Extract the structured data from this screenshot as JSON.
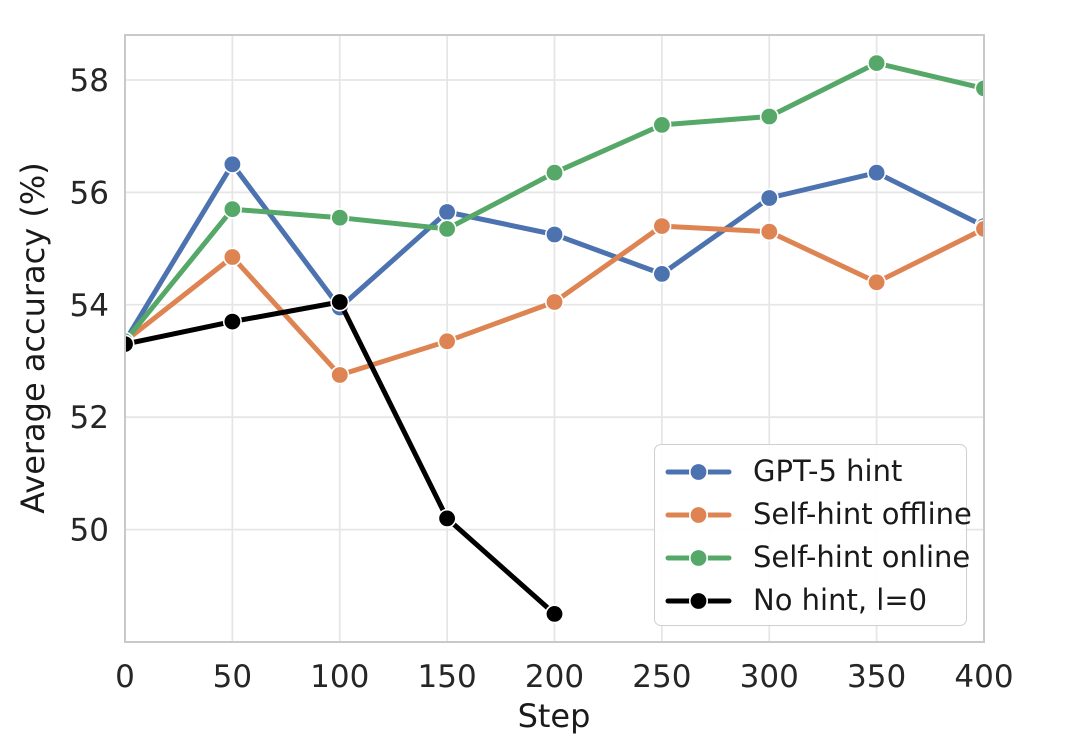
{
  "chart_data": {
    "type": "line",
    "title": "",
    "xlabel": "Step",
    "ylabel": "Average accuracy (%)",
    "x": [
      0,
      50,
      100,
      150,
      200,
      250,
      300,
      350,
      400
    ],
    "xlim": [
      0,
      400
    ],
    "ylim": [
      48.0,
      58.8
    ],
    "xticks": [
      0,
      50,
      100,
      150,
      200,
      250,
      300,
      350,
      400
    ],
    "yticks": [
      50,
      52,
      54,
      56,
      58
    ],
    "grid": true,
    "legend_position": "lower-right-inside",
    "series": [
      {
        "name": "GPT-5 hint",
        "color": "#4C72B0",
        "x": [
          0,
          50,
          100,
          150,
          200,
          250,
          300,
          350,
          400
        ],
        "values": [
          53.35,
          56.5,
          53.95,
          55.65,
          55.25,
          54.55,
          55.9,
          56.35,
          55.4
        ]
      },
      {
        "name": "Self-hint offline",
        "color": "#DD8452",
        "x": [
          0,
          50,
          100,
          150,
          200,
          250,
          300,
          350,
          400
        ],
        "values": [
          53.35,
          54.85,
          52.75,
          53.35,
          54.05,
          55.4,
          55.3,
          54.4,
          55.35
        ]
      },
      {
        "name": "Self-hint online",
        "color": "#55A868",
        "x": [
          0,
          50,
          100,
          150,
          200,
          250,
          300,
          350,
          400
        ],
        "values": [
          53.35,
          55.7,
          55.55,
          55.35,
          56.35,
          57.2,
          57.35,
          58.3,
          57.85
        ]
      },
      {
        "name": "No hint, l=0",
        "color": "#000000",
        "x": [
          0,
          50,
          100,
          150,
          200
        ],
        "values": [
          53.3,
          53.7,
          54.05,
          50.2,
          48.5
        ]
      }
    ]
  }
}
